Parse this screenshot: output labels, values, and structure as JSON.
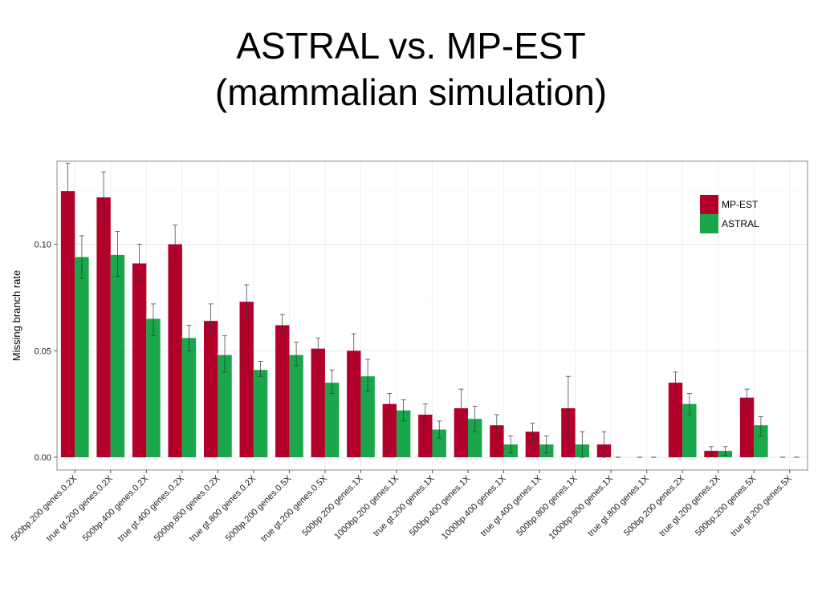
{
  "slide": {
    "title_line1": "ASTRAL vs. MP-EST",
    "title_line2": "(mammalian simulation)"
  },
  "chart_data": {
    "type": "bar",
    "title": "ASTRAL vs. MP-EST (mammalian simulation)",
    "xlabel": "",
    "ylabel": "Missing branch rate",
    "ylim": [
      -0.006,
      0.139
    ],
    "yticks": [
      0.0,
      0.05,
      0.1
    ],
    "ytick_labels": [
      "0.00",
      "0.05",
      "0.10"
    ],
    "grid": true,
    "legend_position": "top-right",
    "categories": [
      "500bp.200 genes.0.2X",
      "true gt.200 genes.0.2X",
      "500bp.400 genes.0.2X",
      "true gt.400 genes.0.2X",
      "500bp.800 genes.0.2X",
      "true gt.800 genes.0.2X",
      "500bp.200 genes.0.5X",
      "true gt.200 genes.0.5X",
      "500bp.200 genes.1X",
      "1000bp.200 genes.1X",
      "true gt.200 genes.1X",
      "500bp.400 genes.1X",
      "1000bp.400 genes.1X",
      "true gt.400 genes.1X",
      "500bp.800 genes.1X",
      "1000bp.800 genes.1X",
      "true gt.800 genes.1X",
      "500bp.200 genes.2X",
      "true gt.200 genes.2X",
      "500bp.200 genes.5X",
      "true gt.200 genes.5X"
    ],
    "series": [
      {
        "name": "MP-EST",
        "color": "#b2002a",
        "values": [
          0.125,
          0.122,
          0.091,
          0.1,
          0.064,
          0.073,
          0.062,
          0.051,
          0.05,
          0.025,
          0.02,
          0.023,
          0.015,
          0.012,
          0.023,
          0.006,
          0.0,
          0.035,
          0.003,
          0.028,
          0.0
        ],
        "err_low": [
          0.113,
          0.11,
          0.083,
          0.091,
          0.057,
          0.066,
          0.057,
          0.047,
          0.042,
          0.02,
          0.016,
          0.015,
          0.01,
          0.007,
          0.009,
          0.0,
          0.0,
          0.032,
          0.001,
          0.024,
          0.0
        ],
        "err_high": [
          0.138,
          0.134,
          0.1,
          0.109,
          0.072,
          0.081,
          0.067,
          0.056,
          0.058,
          0.03,
          0.025,
          0.032,
          0.02,
          0.016,
          0.038,
          0.012,
          0.0,
          0.04,
          0.005,
          0.032,
          0.0
        ]
      },
      {
        "name": "ASTRAL",
        "color": "#1aa64a",
        "values": [
          0.094,
          0.095,
          0.065,
          0.056,
          0.048,
          0.041,
          0.048,
          0.035,
          0.038,
          0.022,
          0.013,
          0.018,
          0.006,
          0.006,
          0.006,
          0.0,
          0.0,
          0.025,
          0.003,
          0.015,
          0.0
        ],
        "err_low": [
          0.084,
          0.085,
          0.057,
          0.05,
          0.04,
          0.038,
          0.043,
          0.03,
          0.031,
          0.017,
          0.009,
          0.012,
          0.002,
          0.002,
          0.0,
          0.0,
          0.0,
          0.02,
          0.001,
          0.01,
          0.0
        ],
        "err_high": [
          0.104,
          0.106,
          0.072,
          0.062,
          0.057,
          0.045,
          0.054,
          0.041,
          0.046,
          0.027,
          0.017,
          0.024,
          0.01,
          0.01,
          0.012,
          0.0,
          0.0,
          0.03,
          0.005,
          0.019,
          0.0
        ]
      }
    ]
  }
}
